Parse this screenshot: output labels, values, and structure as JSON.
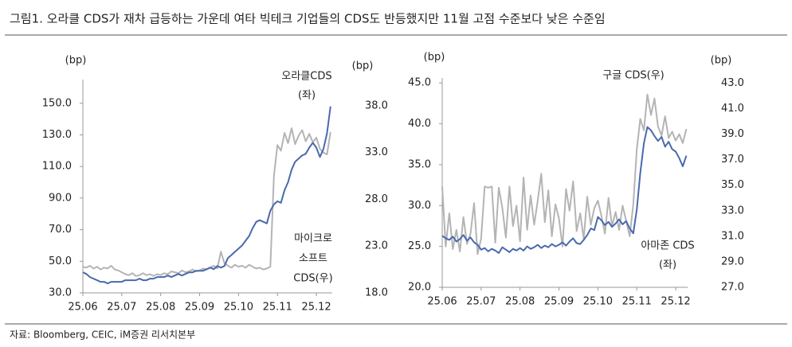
{
  "header": {
    "title": "그림1.   오라클 CDS가 재차 급등하는 가운데 여타 빅테크 기업들의 CDS도 반등했지만 11월 고점 수준보다 낮은 수준임"
  },
  "footer": {
    "source": "자료: Bloomberg, CEIC, iM증권 리서치본부"
  },
  "chart_data": [
    {
      "type": "line",
      "ylabel": "(bp)",
      "y2label": "(bp)",
      "categories": [
        "25.06",
        null,
        null,
        null,
        null,
        null,
        null,
        null,
        null,
        null,
        null,
        "25.07",
        null,
        null,
        null,
        null,
        null,
        null,
        null,
        null,
        null,
        null,
        "25.08",
        null,
        null,
        null,
        null,
        null,
        null,
        null,
        null,
        null,
        null,
        "25.09",
        null,
        null,
        null,
        null,
        null,
        null,
        null,
        null,
        null,
        null,
        "25.10",
        null,
        null,
        null,
        null,
        null,
        null,
        null,
        null,
        null,
        null,
        "25.11",
        null,
        null,
        null,
        null,
        null,
        null,
        null,
        null,
        null,
        null,
        "25.12",
        null,
        null,
        null,
        null
      ],
      "ylim": [
        30,
        165
      ],
      "yticks": [
        {
          "value": 30,
          "label": "30.0"
        },
        {
          "value": 50,
          "label": "50.0"
        },
        {
          "value": 70,
          "label": "70.0"
        },
        {
          "value": 90,
          "label": "90.0"
        },
        {
          "value": 110,
          "label": "110.0"
        },
        {
          "value": 130,
          "label": "130.0"
        },
        {
          "value": 150,
          "label": "150.0"
        }
      ],
      "y2lim": [
        18,
        40.8
      ],
      "y2ticks": [
        {
          "value": 18,
          "label": "18.0"
        },
        {
          "value": 23,
          "label": "23.0"
        },
        {
          "value": 28,
          "label": "28.0"
        },
        {
          "value": 33,
          "label": "33.0"
        },
        {
          "value": 38,
          "label": "38.0"
        }
      ],
      "series": [
        {
          "label": [
            "오라클CDS",
            "(좌)"
          ],
          "color": "#4a69ad",
          "axis": "y",
          "values": [
            43,
            42,
            40,
            39,
            38,
            37,
            37,
            36,
            37,
            37,
            37,
            37,
            38,
            38,
            38,
            38,
            39,
            38,
            38,
            39,
            39,
            40,
            40,
            40,
            41,
            40,
            41,
            42,
            41,
            42,
            43,
            43,
            44,
            44,
            44,
            45,
            46,
            45,
            47,
            46,
            47,
            52,
            54,
            56,
            58,
            60,
            63,
            66,
            71,
            75,
            76,
            75,
            74,
            82,
            86,
            88,
            87,
            95,
            100,
            108,
            113,
            115,
            117,
            118,
            122,
            125,
            122,
            116,
            121,
            131,
            148
          ]
        },
        {
          "label": [
            "마이크로",
            "소프트",
            "CDS(우)"
          ],
          "color": "#b4b4b4",
          "axis": "y2",
          "values": [
            20.8,
            20.7,
            20.9,
            20.6,
            20.8,
            20.5,
            20.7,
            20.6,
            20.9,
            20.5,
            20.4,
            20.2,
            20.0,
            19.9,
            20.1,
            19.8,
            19.9,
            20.1,
            19.9,
            20.0,
            19.8,
            20.0,
            19.9,
            20.1,
            20.0,
            20.3,
            20.2,
            20.1,
            20.4,
            20.2,
            20.3,
            20.5,
            20.3,
            20.4,
            20.6,
            20.5,
            20.7,
            20.9,
            20.6,
            22.4,
            21.2,
            20.9,
            20.7,
            21.0,
            20.8,
            20.9,
            20.7,
            21.0,
            20.8,
            20.6,
            20.7,
            20.5,
            20.6,
            20.8,
            30.5,
            33.8,
            33.2,
            35.1,
            34.0,
            35.6,
            33.9,
            34.8,
            35.4,
            34.2,
            35.0,
            34.1,
            34.6,
            33.4,
            33.0,
            32.8,
            35.2
          ]
        }
      ]
    },
    {
      "type": "line",
      "ylabel": "(bp)",
      "y2label": "(bp)",
      "categories": [
        "25.06",
        null,
        null,
        null,
        null,
        null,
        null,
        null,
        null,
        null,
        null,
        "25.07",
        null,
        null,
        null,
        null,
        null,
        null,
        null,
        null,
        null,
        null,
        "25.08",
        null,
        null,
        null,
        null,
        null,
        null,
        null,
        null,
        null,
        null,
        "25.09",
        null,
        null,
        null,
        null,
        null,
        null,
        null,
        null,
        null,
        null,
        "25.10",
        null,
        null,
        null,
        null,
        null,
        null,
        null,
        null,
        null,
        null,
        "25.11",
        null,
        null,
        null,
        null,
        null,
        null,
        null,
        null,
        null,
        null,
        "25.12",
        null,
        null,
        null
      ],
      "ylim": [
        20,
        45.6
      ],
      "yticks": [
        {
          "value": 20,
          "label": "20.0"
        },
        {
          "value": 25,
          "label": "25.0"
        },
        {
          "value": 30,
          "label": "30.0"
        },
        {
          "value": 35,
          "label": "35.0"
        },
        {
          "value": 40,
          "label": "40.0"
        },
        {
          "value": 45,
          "label": "45.0"
        }
      ],
      "y2lim": [
        27,
        43.4
      ],
      "y2ticks": [
        {
          "value": 27,
          "label": "27.0"
        },
        {
          "value": 29,
          "label": "29.0"
        },
        {
          "value": 31,
          "label": "31.0"
        },
        {
          "value": 33,
          "label": "33.0"
        },
        {
          "value": 35,
          "label": "35.0"
        },
        {
          "value": 37,
          "label": "37.0"
        },
        {
          "value": 39,
          "label": "39.0"
        },
        {
          "value": 41,
          "label": "41.0"
        },
        {
          "value": 43,
          "label": "43.0"
        }
      ],
      "series": [
        {
          "label": [
            "아마존 CDS",
            "(좌)"
          ],
          "color": "#4a69ad",
          "axis": "y",
          "values": [
            26.3,
            26.0,
            25.8,
            26.2,
            25.6,
            25.9,
            26.4,
            25.7,
            26.1,
            25.5,
            25.2,
            24.6,
            24.8,
            24.4,
            24.7,
            24.5,
            24.2,
            24.9,
            24.6,
            24.3,
            24.7,
            24.5,
            24.8,
            24.5,
            25.0,
            24.7,
            24.9,
            25.2,
            24.8,
            25.1,
            24.9,
            25.3,
            25.0,
            25.2,
            25.5,
            25.1,
            25.6,
            26.0,
            25.4,
            25.3,
            25.8,
            26.4,
            27.2,
            27.0,
            28.6,
            28.2,
            27.6,
            28.0,
            27.4,
            27.8,
            28.3,
            27.7,
            28.1,
            27.2,
            26.6,
            29.5,
            34.0,
            37.6,
            39.6,
            39.2,
            38.5,
            37.9,
            38.4,
            37.2,
            37.8,
            36.9,
            36.6,
            35.8,
            34.8,
            36.1
          ]
        },
        {
          "label": [
            "구글 CDS(우)"
          ],
          "color": "#b4b4b4",
          "axis": "y2",
          "values": [
            34.9,
            30.2,
            32.8,
            30.0,
            31.5,
            29.8,
            32.5,
            30.4,
            31.2,
            33.6,
            29.6,
            30.8,
            34.9,
            34.8,
            34.9,
            30.5,
            34.8,
            33.2,
            30.9,
            34.9,
            31.8,
            33.4,
            30.6,
            35.6,
            31.5,
            34.2,
            31.9,
            33.8,
            35.9,
            32.1,
            34.6,
            31.0,
            33.5,
            32.4,
            30.2,
            34.7,
            33.0,
            35.3,
            31.4,
            32.8,
            30.8,
            34.1,
            31.9,
            33.2,
            33.8,
            32.6,
            31.2,
            34.0,
            31.8,
            32.9,
            31.5,
            33.4,
            32.2,
            31.0,
            33.5,
            37.8,
            40.2,
            39.3,
            42.1,
            40.5,
            41.8,
            39.6,
            38.9,
            40.4,
            38.7,
            39.2,
            38.5,
            39.0,
            38.3,
            39.4
          ]
        }
      ]
    }
  ]
}
